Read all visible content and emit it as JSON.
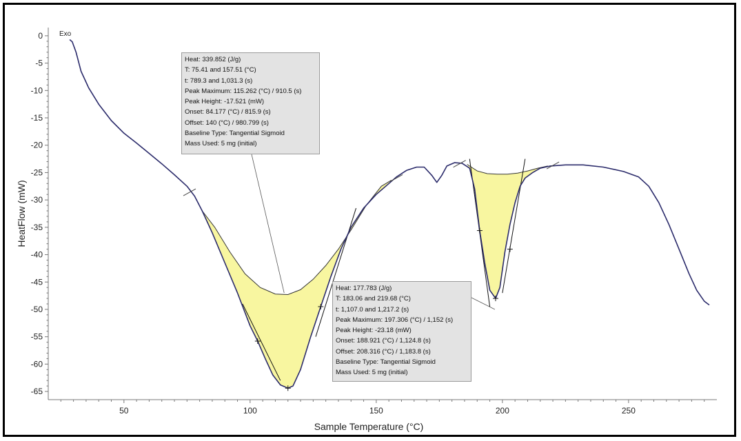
{
  "chart_data": {
    "type": "line",
    "title": "",
    "xlabel": "Sample Temperature (°C)",
    "ylabel": "HeatFlow (mW)",
    "corner_label": "Exo",
    "xlim": [
      20,
      285
    ],
    "ylim": [
      -66.5,
      1.5
    ],
    "x_ticks": [
      50,
      100,
      150,
      200,
      250
    ],
    "y_ticks": [
      0,
      -5,
      -10,
      -15,
      -20,
      -25,
      -30,
      -35,
      -40,
      -45,
      -50,
      -55,
      -60,
      -65
    ],
    "grid": false,
    "line_color": "#2a2a6a",
    "fill_color": "#f8f6a0",
    "series": [
      {
        "values": [
          [
            28.5,
            -0.7
          ],
          [
            29.5,
            -1.1
          ],
          [
            31,
            -3.0
          ],
          [
            33,
            -6.5
          ],
          [
            36,
            -9.5
          ],
          [
            40,
            -12.5
          ],
          [
            45,
            -15.5
          ],
          [
            50,
            -17.8
          ],
          [
            55,
            -19.6
          ],
          [
            60,
            -21.5
          ],
          [
            65,
            -23.4
          ],
          [
            70,
            -25.4
          ],
          [
            75,
            -27.5
          ],
          [
            78,
            -29.3
          ],
          [
            81,
            -32.0
          ],
          [
            85,
            -36.0
          ],
          [
            90,
            -41.5
          ],
          [
            95,
            -47.0
          ],
          [
            100,
            -53.0
          ],
          [
            103,
            -55.8
          ],
          [
            106,
            -59.0
          ],
          [
            109,
            -62.0
          ],
          [
            112,
            -63.8
          ],
          [
            115,
            -64.4
          ],
          [
            117,
            -64.0
          ],
          [
            120,
            -61.0
          ],
          [
            124,
            -55.0
          ],
          [
            128,
            -49.5
          ],
          [
            132,
            -44.0
          ],
          [
            136,
            -39.0
          ],
          [
            140,
            -35.0
          ],
          [
            145,
            -31.5
          ],
          [
            150,
            -29.0
          ],
          [
            155,
            -27.0
          ],
          [
            158,
            -25.8
          ],
          [
            162,
            -24.6
          ],
          [
            166,
            -24.0
          ],
          [
            169,
            -24.0
          ],
          [
            172,
            -25.5
          ],
          [
            174,
            -26.8
          ],
          [
            176,
            -25.5
          ],
          [
            178,
            -23.8
          ],
          [
            181,
            -23.2
          ],
          [
            184,
            -23.3
          ],
          [
            187,
            -24.2
          ],
          [
            189,
            -28.0
          ],
          [
            191,
            -35.6
          ],
          [
            193,
            -41.5
          ],
          [
            195,
            -46.5
          ],
          [
            197.3,
            -48.0
          ],
          [
            199,
            -46.0
          ],
          [
            201,
            -39.5
          ],
          [
            203,
            -34.5
          ],
          [
            205,
            -30.5
          ],
          [
            207,
            -27.5
          ],
          [
            209,
            -26.0
          ],
          [
            212,
            -25.0
          ],
          [
            215,
            -24.2
          ],
          [
            219,
            -23.8
          ],
          [
            225,
            -23.6
          ],
          [
            232,
            -23.6
          ],
          [
            240,
            -24.0
          ],
          [
            248,
            -24.8
          ],
          [
            254,
            -25.8
          ],
          [
            258,
            -27.5
          ],
          [
            262,
            -30.5
          ],
          [
            266,
            -34.5
          ],
          [
            270,
            -39.0
          ],
          [
            274,
            -43.5
          ],
          [
            277,
            -46.5
          ],
          [
            280,
            -48.5
          ],
          [
            282,
            -49.2
          ]
        ]
      }
    ],
    "peaks": [
      {
        "baseline": [
          [
            81,
            -32.0
          ],
          [
            86,
            -35.0
          ],
          [
            92,
            -39.5
          ],
          [
            98,
            -43.5
          ],
          [
            104,
            -46.0
          ],
          [
            110,
            -47.2
          ],
          [
            115,
            -47.3
          ],
          [
            120,
            -46.4
          ],
          [
            125,
            -44.5
          ],
          [
            130,
            -42.0
          ],
          [
            135,
            -39.0
          ],
          [
            140,
            -35.5
          ],
          [
            146,
            -31.0
          ],
          [
            152,
            -27.5
          ],
          [
            156,
            -26.4
          ]
        ],
        "curve": [
          [
            81,
            -32.0
          ],
          [
            85,
            -36.0
          ],
          [
            90,
            -41.5
          ],
          [
            95,
            -47.0
          ],
          [
            100,
            -53.0
          ],
          [
            103,
            -55.8
          ],
          [
            106,
            -59.0
          ],
          [
            109,
            -62.0
          ],
          [
            112,
            -63.8
          ],
          [
            115,
            -64.4
          ],
          [
            117,
            -64.0
          ],
          [
            120,
            -61.0
          ],
          [
            124,
            -55.0
          ],
          [
            128,
            -49.5
          ],
          [
            132,
            -44.0
          ],
          [
            136,
            -39.0
          ],
          [
            140,
            -35.0
          ],
          [
            145,
            -31.5
          ],
          [
            150,
            -29.0
          ],
          [
            156,
            -26.4
          ]
        ],
        "tangents": [
          [
            [
              97,
              -49.0
            ],
            [
              112,
              -63.0
            ]
          ],
          [
            [
              126,
              -55.0
            ],
            [
              142,
              -31.5
            ]
          ]
        ],
        "markers": [
          [
            103,
            -55.8
          ],
          [
            128,
            -49.5
          ],
          [
            115,
            -64.4
          ]
        ],
        "leader_to": [
          113.5,
          -47.0
        ],
        "info": {
          "heat": "Heat:  339.852 (J/g)",
          "t_range": "T: 75.41 and 157.51 (°C)",
          "time_range": "t: 789.3 and 1,031.3 (s)",
          "peak_max": "Peak Maximum:  115.262 (°C) / 910.5 (s)",
          "peak_height": "Peak Height:  -17.521 (mW)",
          "onset": "Onset:  84.177 (°C) / 815.9 (s)",
          "offset": "Offset:  140 (°C) / 980.799 (s)",
          "baseline_type": "Baseline Type:  Tangential Sigmoid",
          "mass": "Mass Used:  5 mg (initial)"
        }
      },
      {
        "baseline": [
          [
            186,
            -23.5
          ],
          [
            190,
            -24.7
          ],
          [
            194,
            -25.2
          ],
          [
            198,
            -25.3
          ],
          [
            202,
            -25.3
          ],
          [
            206,
            -25.1
          ],
          [
            210,
            -24.7
          ],
          [
            214,
            -24.2
          ],
          [
            218,
            -23.8
          ]
        ],
        "curve": [
          [
            186,
            -23.5
          ],
          [
            187,
            -24.2
          ],
          [
            189,
            -28.0
          ],
          [
            191,
            -35.6
          ],
          [
            193,
            -41.5
          ],
          [
            195,
            -46.5
          ],
          [
            197.3,
            -48.0
          ],
          [
            199,
            -46.0
          ],
          [
            201,
            -39.5
          ],
          [
            203,
            -34.5
          ],
          [
            205,
            -30.5
          ],
          [
            207,
            -27.5
          ],
          [
            209,
            -26.0
          ],
          [
            212,
            -25.0
          ],
          [
            215,
            -24.2
          ],
          [
            218,
            -23.8
          ]
        ],
        "tangents": [
          [
            [
              187,
              -22.5
            ],
            [
              195,
              -49.5
            ]
          ],
          [
            [
              200,
              -47.0
            ],
            [
              209,
              -22.5
            ]
          ]
        ],
        "markers": [
          [
            191,
            -35.6
          ],
          [
            203,
            -39.0
          ],
          [
            197.3,
            -48.0
          ]
        ],
        "leader_to": [
          197.0,
          -50.0
        ],
        "info": {
          "heat": "Heat:  177.783 (J/g)",
          "t_range": "T: 183.06 and 219.68 (°C)",
          "time_range": "t: 1,107.0 and 1,217.2 (s)",
          "peak_max": "Peak Maximum:  197.306 (°C) / 1,152 (s)",
          "peak_height": "Peak Height:  -23.18 (mW)",
          "onset": "Onset:  188.921 (°C) / 1,124.8 (s)",
          "offset": "Offset:  208.316 (°C) / 1,183.8 (s)",
          "baseline_type": "Baseline Type:  Tangential Sigmoid",
          "mass": "Mass Used:  5 mg (initial)"
        }
      }
    ],
    "limit_marks": [
      [
        76,
        -28.6
      ],
      [
        158,
        -26.0
      ],
      [
        183,
        -23.4
      ],
      [
        220,
        -23.7
      ]
    ]
  }
}
